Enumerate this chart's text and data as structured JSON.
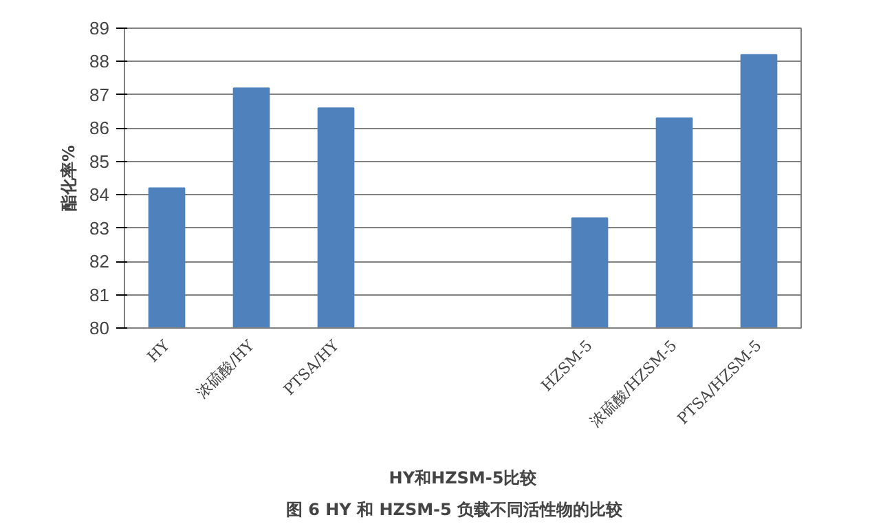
{
  "chart_data": {
    "type": "bar",
    "xlabel": "HY和HZSM-5比较",
    "ylabel": "酯化率%",
    "annotations": [
      "图 6    HY 和 HZSM-5 负载不同活性物的比较"
    ],
    "categories": [
      "HY",
      "浓硫酸/HY",
      "PTSA/HY",
      null,
      null,
      "HZSM-5",
      "浓硫酸/HZSM-5",
      "PTSA/HZSM-5"
    ],
    "values": [
      84.2,
      87.2,
      86.6,
      null,
      null,
      83.3,
      86.3,
      88.2
    ],
    "color": "#4f81bd",
    "ylim": [
      80,
      89
    ],
    "yticks": [
      80,
      81,
      82,
      83,
      84,
      85,
      86,
      87,
      88,
      89
    ],
    "grid": "y"
  }
}
